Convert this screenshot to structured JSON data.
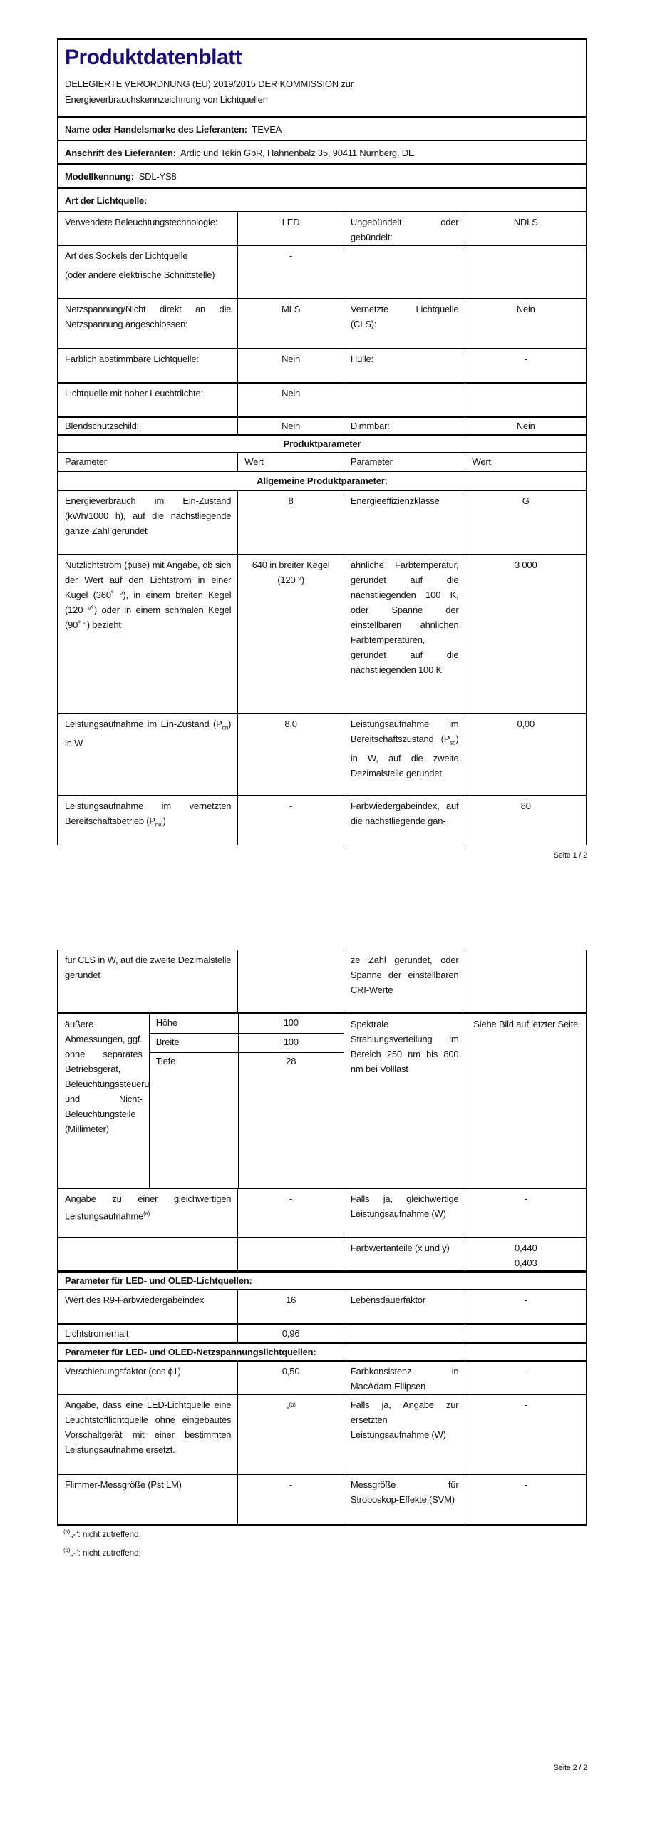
{
  "header": {
    "title": "Produktdatenblatt",
    "subtitle": "DELEGIERTE VERORDNUNG (EU) 2019/2015 DER KOMMISSION zur Energieverbrauchskennzeichnung von Lichtquellen"
  },
  "supplier": {
    "name_label": "Name oder Handelsmarke des Lieferanten:",
    "name_value": "TEVEA",
    "address_label": "Anschrift des Lieferanten:",
    "address_value": "Ardic und Tekin GbR, Hahnenbalz 35, 90411 Nürnberg, DE",
    "model_label": "Modellkennung:",
    "model_value": "SDL-YS8"
  },
  "light_source": {
    "heading": "Art der Lichtquelle:",
    "rows": [
      {
        "p1": "Verwendete Beleuchtungstechnologie:",
        "v1": "LED",
        "p2": "Ungebündelt oder gebündelt:",
        "v2": "NDLS"
      },
      {
        "p1": "Art des Sockels der Lichtquelle",
        "p1b": "(oder andere elektrische Schnittstelle)",
        "v1": "-",
        "p2": "",
        "v2": ""
      },
      {
        "p1": "Netzspannung/Nicht direkt an die Netzspannung angeschlossen:",
        "v1": "MLS",
        "p2": "Vernetzte Lichtquelle (CLS):",
        "v2": "Nein"
      },
      {
        "p1": "Farblich abstimmbare Lichtquelle:",
        "v1": "Nein",
        "p2": "Hülle:",
        "v2": "-"
      },
      {
        "p1": "Lichtquelle mit hoher Leuchtdichte:",
        "v1": "Nein",
        "p2": "",
        "v2": ""
      },
      {
        "p1": "Blendschutzschild:",
        "v1": "Nein",
        "p2": "Dimmbar:",
        "v2": "Nein"
      }
    ]
  },
  "product_params": {
    "heading": "Produktparameter",
    "col_param": "Parameter",
    "col_value": "Wert",
    "general_heading": "Allgemeine Produktparameter:",
    "energy": {
      "p1": "Energieverbrauch im Ein-Zustand (kWh/1000 h), auf die nächstliegende ganze Zahl gerundet",
      "v1": "8",
      "p2": "Energieeffizienzklasse",
      "v2": "G"
    },
    "flux": {
      "p1": "Nutzlichtstrom (ϕuse) mit Angabe, ob sich der Wert auf den Lichtstrom in einer Kugel (360˚ °), in einem breiten Kegel (120 °˚) oder in einem schmalen Kegel (90˚ °) bezieht",
      "v1": "640 in breiter Kegel (120 °)",
      "p2": "ähnliche Farbtemperatur, gerundet auf die nächstliegenden 100 K, oder Spanne der einstellbaren ähnlichen Farbtemperaturen, gerundet auf die nächstliegenden 100 K",
      "v2": "3 000"
    },
    "power_on": {
      "p1_pre": "Leistungsaufnahme im Ein-Zustand (P",
      "p1_sub": "on",
      "p1_post": ") in W",
      "v1": "8,0",
      "p2_pre": "Leistungsaufnahme im Bereitschaftszustand (P",
      "p2_sub": "sb",
      "p2_post": ") in W, auf die zweite Dezimalstelle gerundet",
      "v2": "0,00"
    },
    "power_net": {
      "p1_pre": "Leistungsaufnahme im vernetzten Bereitschaftsbetrieb (P",
      "p1_sub": "net",
      "p1_post": ")",
      "p1_cont": "für CLS in W, auf die zweite Dezimalstelle gerundet",
      "v1": "-",
      "p2": "Farbwiedergabeindex, auf die nächstliegende gan-",
      "p2_cont": "ze Zahl gerundet, oder Spanne der einstellbaren CRI-Werte",
      "v2": "80"
    },
    "dimensions": {
      "p1": "äußere Abmessungen, ggf. ohne separates Betriebsgerät, Beleuchtungssteuerungsteile und Nicht-Beleuchtungsteile (Millimeter)",
      "items": [
        {
          "label": "Höhe",
          "value": "100"
        },
        {
          "label": "Breite",
          "value": "100"
        },
        {
          "label": "Tiefe",
          "value": "28"
        }
      ],
      "p2": "Spektrale Strahlungsverteilung im Bereich 250 nm bis 800 nm bei Volllast",
      "v2": "Siehe Bild auf letzter Seite"
    },
    "equiv": {
      "p1": "Angabe zu einer gleichwertigen Leistungsaufnahme",
      "p1_sup": "(a)",
      "v1": "-",
      "p2": "Falls ja, gleichwertige Leistungsaufnahme (W)",
      "v2": "-"
    },
    "chroma": {
      "p2": "Farbwertanteile (x und y)",
      "x": "0,440",
      "y": "0,403"
    }
  },
  "led": {
    "heading": "Parameter für LED- und OLED-Lichtquellen:",
    "r9": {
      "p1": "Wert des R9-Farbwiedergabeindex",
      "v1": "16",
      "p2": "Lebensdauerfaktor",
      "v2": "-"
    },
    "maint": {
      "p1": "Lichtstromerhalt",
      "v1": "0,96"
    }
  },
  "led_mains": {
    "heading": "Parameter für LED- und OLED-Netzspannungslichtquellen:",
    "disp": {
      "p1": "Verschiebungsfaktor (cos ϕ1)",
      "v1": "0,50",
      "p2": "Farbkonsistenz in MacAdam-Ellipsen",
      "v2": "-"
    },
    "replace": {
      "p1": "Angabe, dass eine LED-Lichtquelle eine Leuchtstofflichtquelle ohne eingebautes Vorschaltgerät mit einer bestimmten Leistungsaufnahme ersetzt.",
      "v1": "-",
      "v1_sup": "(b)",
      "p2": "Falls ja, Angabe zur ersetzten Leistungsaufnahme (W)",
      "v2": "-"
    },
    "flicker": {
      "p1": "Flimmer-Messgröße (Pst LM)",
      "v1": "-",
      "p2": "Messgröße für Stroboskop-Effekte (SVM)",
      "v2": "-"
    }
  },
  "footnotes": [
    {
      "mark": "(a)",
      "text": "„-“: nicht zutreffend;"
    },
    {
      "mark": "(b)",
      "text": "„-“: nicht zutreffend;"
    }
  ],
  "pages": {
    "page1": "Seite 1 / 2",
    "page2": "Seite 2 / 2"
  },
  "colors": {
    "title": "#1c1070",
    "border": "#000000"
  }
}
